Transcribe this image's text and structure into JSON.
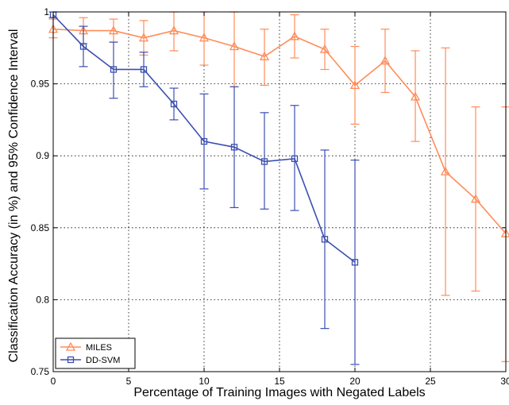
{
  "chart_data": {
    "type": "line",
    "title": "",
    "xlabel": "Percentage of Training Images with Negated Labels",
    "ylabel": "Classification Accuracy (in %) and 95% Confidence Interval",
    "xlim": [
      0,
      30
    ],
    "ylim": [
      0.75,
      1.0
    ],
    "xticks": [
      0,
      5,
      10,
      15,
      20,
      25,
      30
    ],
    "xtick_labels": [
      "0",
      "5",
      "10",
      "15",
      "20",
      "25",
      "30"
    ],
    "yticks": [
      0.75,
      0.8,
      0.85,
      0.9,
      0.95,
      1.0
    ],
    "ytick_labels": [
      "0.75",
      "0.8",
      "0.85",
      "0.9",
      "0.95",
      "1"
    ],
    "grid": true,
    "legend_position": "bottom-left",
    "series": [
      {
        "name": "MILES",
        "color": "#ff8c5a",
        "marker": "triangle",
        "x": [
          0,
          2,
          4,
          6,
          8,
          10,
          12,
          14,
          16,
          18,
          20,
          22,
          24,
          26,
          28,
          30
        ],
        "y": [
          0.988,
          0.987,
          0.987,
          0.982,
          0.987,
          0.982,
          0.976,
          0.969,
          0.983,
          0.974,
          0.949,
          0.966,
          0.941,
          0.889,
          0.87,
          0.846
        ],
        "lower": [
          0.982,
          0.978,
          0.979,
          0.97,
          0.973,
          0.963,
          0.948,
          0.949,
          0.968,
          0.96,
          0.922,
          0.944,
          0.91,
          0.803,
          0.806,
          0.757
        ],
        "upper": [
          0.995,
          0.996,
          0.995,
          0.994,
          1.0,
          1.0,
          1.0,
          0.988,
          0.998,
          0.988,
          0.976,
          0.988,
          0.973,
          0.975,
          0.934,
          0.934
        ]
      },
      {
        "name": "DD-SVM",
        "color": "#3b4fb0",
        "marker": "square",
        "x": [
          0,
          2,
          4,
          6,
          8,
          10,
          12,
          14,
          16,
          18,
          20
        ],
        "y": [
          0.998,
          0.976,
          0.96,
          0.96,
          0.936,
          0.91,
          0.906,
          0.896,
          0.898,
          0.842,
          0.826
        ],
        "lower": [
          0.996,
          0.962,
          0.94,
          0.948,
          0.925,
          0.877,
          0.864,
          0.863,
          0.862,
          0.78,
          0.755
        ],
        "upper": [
          1.0,
          0.99,
          0.979,
          0.972,
          0.947,
          0.943,
          0.948,
          0.93,
          0.935,
          0.904,
          0.897
        ]
      }
    ]
  }
}
